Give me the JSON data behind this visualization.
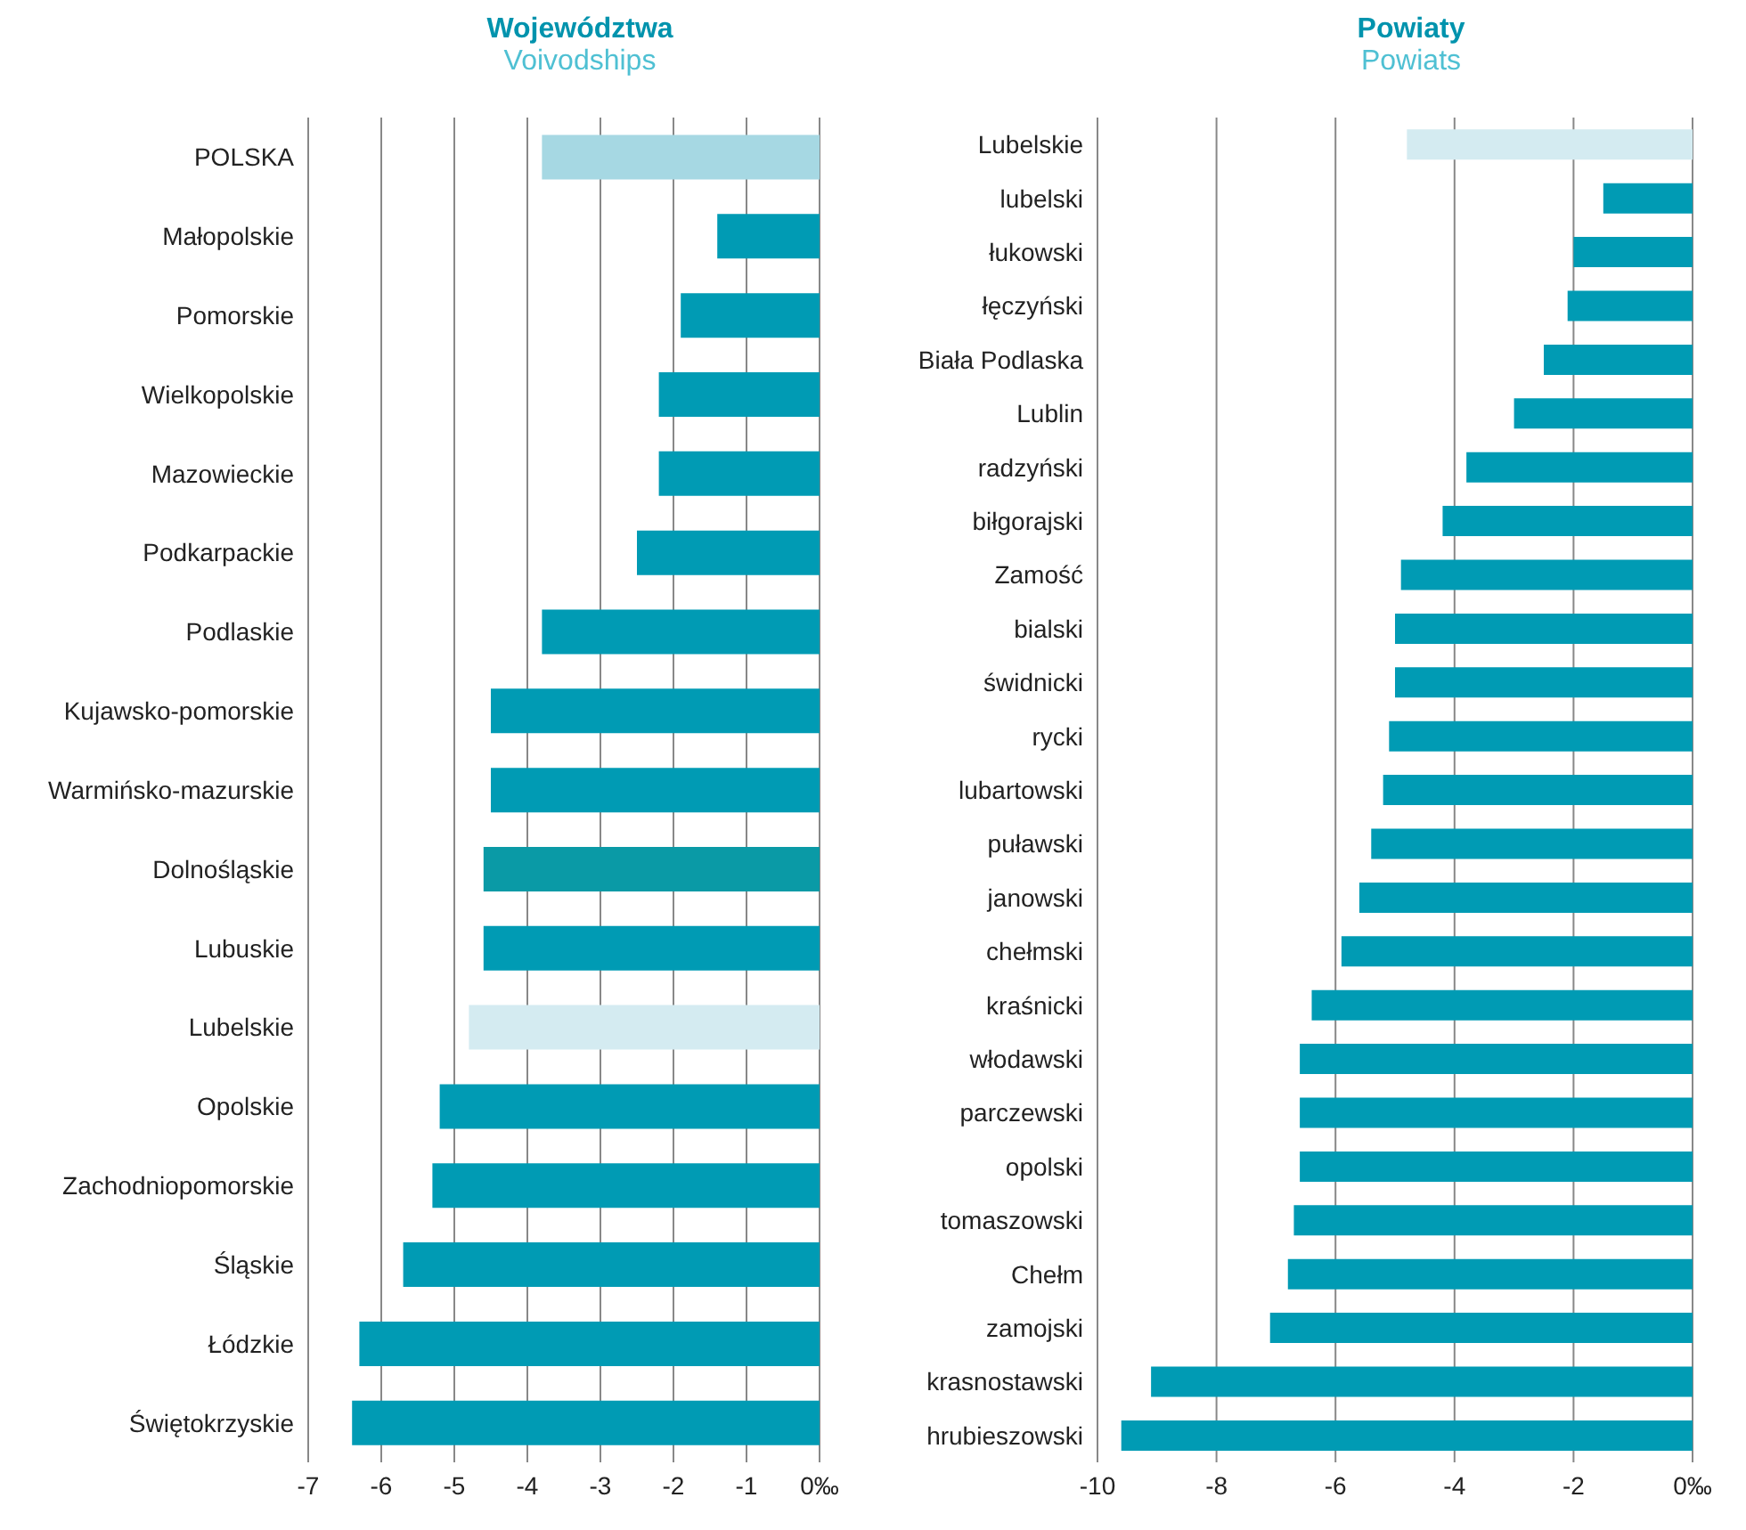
{
  "chart_data": [
    {
      "type": "bar",
      "orientation": "horizontal",
      "title": "Województwa",
      "subtitle": "Voivodships",
      "categories": [
        "POLSKA",
        "Małopolskie",
        "Pomorskie",
        "Wielkopolskie",
        "Mazowieckie",
        "Podkarpackie",
        "Podlaskie",
        "Kujawsko-pomorskie",
        "Warmińsko-mazurskie",
        "Dolnośląskie",
        "Lubuskie",
        "Lubelskie",
        "Opolskie",
        "Zachodniopomorskie",
        "Śląskie",
        "Łódzkie",
        "Świętokrzyskie"
      ],
      "values": [
        -3.8,
        -1.4,
        -1.9,
        -2.2,
        -2.2,
        -2.5,
        -3.8,
        -4.5,
        -4.5,
        -4.6,
        -4.6,
        -4.8,
        -5.2,
        -5.3,
        -5.7,
        -6.3,
        -6.4
      ],
      "colors": [
        "#a6d8e3",
        "#009bb4",
        "#009bb4",
        "#009bb4",
        "#009bb4",
        "#009bb4",
        "#009bb4",
        "#009bb4",
        "#009bb4",
        "#0a9aa6",
        "#009bb4",
        "#d4ebf1",
        "#009bb4",
        "#009bb4",
        "#009bb4",
        "#009bb4",
        "#009bb4"
      ],
      "xlim": [
        -7,
        0
      ],
      "xticks": [
        -7,
        -6,
        -5,
        -4,
        -3,
        -2,
        -1,
        {
          "value": 0,
          "label": "0‰"
        }
      ],
      "grid": "x",
      "legend": false
    },
    {
      "type": "bar",
      "orientation": "horizontal",
      "title": "Powiaty",
      "subtitle": "Powiats",
      "categories": [
        "Lubelskie",
        "lubelski",
        "łukowski",
        "łęczyński",
        "Biała Podlaska",
        "Lublin",
        "radzyński",
        "biłgorajski",
        "Zamość",
        "bialski",
        "świdnicki",
        "rycki",
        "lubartowski",
        "puławski",
        "janowski",
        "chełmski",
        "kraśnicki",
        "włodawski",
        "parczewski",
        "opolski",
        "tomaszowski",
        "Chełm",
        "zamojski",
        "krasnostawski",
        "hrubieszowski"
      ],
      "values": [
        -4.8,
        -1.5,
        -2.0,
        -2.1,
        -2.5,
        -3.0,
        -3.8,
        -4.2,
        -4.9,
        -5.0,
        -5.0,
        -5.1,
        -5.2,
        -5.4,
        -5.6,
        -5.9,
        -6.4,
        -6.6,
        -6.6,
        -6.6,
        -6.7,
        -6.8,
        -7.1,
        -9.1,
        -9.6
      ],
      "colors": [
        "#d4ebf1",
        "#009bb4",
        "#009bb4",
        "#009bb4",
        "#009bb4",
        "#009bb4",
        "#009bb4",
        "#009bb4",
        "#009bb4",
        "#009bb4",
        "#009bb4",
        "#009bb4",
        "#009bb4",
        "#009bb4",
        "#009bb4",
        "#009bb4",
        "#009bb4",
        "#009bb4",
        "#009bb4",
        "#009bb4",
        "#009bb4",
        "#009bb4",
        "#009bb4",
        "#009bb4",
        "#009bb4"
      ],
      "xlim": [
        -10,
        0
      ],
      "xticks": [
        -10,
        -8,
        -6,
        -4,
        -2,
        {
          "value": 0,
          "label": "0‰"
        }
      ],
      "grid": "x",
      "legend": false
    }
  ]
}
